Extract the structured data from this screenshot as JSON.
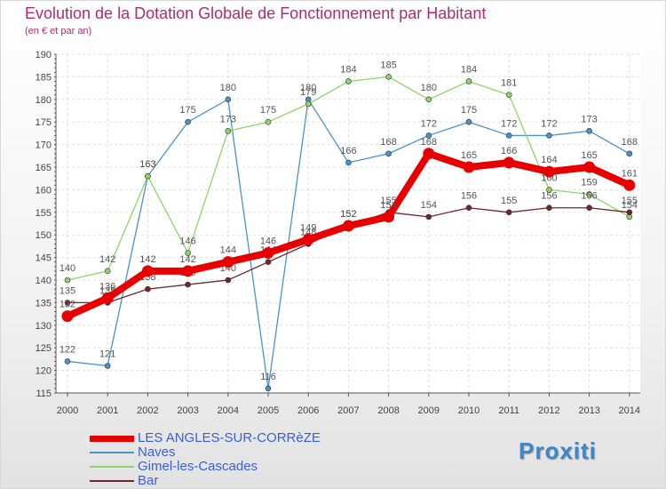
{
  "chart_data": {
    "type": "line",
    "title": "Evolution de la Dotation Globale de Fonctionnement par Habitant",
    "subtitle": "(en € et par an)",
    "xlabel": "",
    "ylabel": "",
    "x": [
      "2000",
      "2001",
      "2002",
      "2003",
      "2004",
      "2005",
      "2006",
      "2007",
      "2008",
      "2009",
      "2010",
      "2011",
      "2012",
      "2013",
      "2014"
    ],
    "ylim": [
      115,
      190
    ],
    "yticks": [
      115,
      120,
      125,
      130,
      135,
      140,
      145,
      150,
      155,
      160,
      165,
      170,
      175,
      180,
      185,
      190
    ],
    "grid": true,
    "legend_position": "bottom-left",
    "series": [
      {
        "name": "Naves",
        "color": "#4a92c9",
        "values": [
          122,
          121,
          163,
          175,
          180,
          116,
          180,
          166,
          168,
          172,
          175,
          172,
          172,
          173,
          168
        ]
      },
      {
        "name": "Gimel-les-Cascades",
        "color": "#8ed46a",
        "values": [
          140,
          142,
          163,
          146,
          173,
          175,
          179,
          184,
          185,
          180,
          184,
          181,
          160,
          159,
          154
        ]
      },
      {
        "name": "Bar",
        "color": "#6e2630",
        "values": [
          135,
          135,
          138,
          139,
          140,
          144,
          148,
          152,
          155,
          154,
          156,
          155,
          156,
          156,
          155
        ]
      },
      {
        "name": "LES ANGLES-SUR-CORRèZE",
        "color": "#e60000",
        "values": [
          132,
          136,
          142,
          142,
          144,
          146,
          149,
          152,
          154,
          168,
          165,
          166,
          164,
          165,
          161
        ]
      }
    ]
  },
  "legend": {
    "items": [
      {
        "label": "LES ANGLES-SUR-CORRèZE",
        "color": "#e60000"
      },
      {
        "label": "Naves",
        "color": "#4a92c9"
      },
      {
        "label": "Gimel-les-Cascades",
        "color": "#8ed46a"
      },
      {
        "label": "Bar",
        "color": "#6e2630"
      }
    ]
  },
  "logo": {
    "text": "Proxiti"
  }
}
